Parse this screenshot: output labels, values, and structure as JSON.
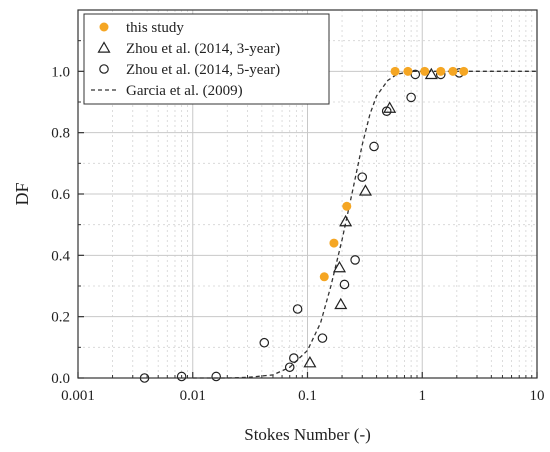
{
  "chart_data": {
    "type": "scatter",
    "xlabel": "Stokes Number (-)",
    "ylabel": "DF",
    "xscale": "log",
    "xlim": [
      0.001,
      10
    ],
    "ylim": [
      0,
      1.2
    ],
    "xticks": [
      0.001,
      0.01,
      0.1,
      1,
      10
    ],
    "xtick_labels": [
      "0.001",
      "0.01",
      "0.1",
      "1",
      "10"
    ],
    "yticks": [
      0.0,
      0.2,
      0.4,
      0.6,
      0.8,
      1.0
    ],
    "ytick_labels": [
      "0.0",
      "0.2",
      "0.4",
      "0.6",
      "0.8",
      "1.0"
    ],
    "grid": true,
    "legend_position": "top-left",
    "series": [
      {
        "name": "this study",
        "marker": "filled-circle",
        "color": "#f5a623",
        "points": [
          [
            0.14,
            0.33
          ],
          [
            0.17,
            0.44
          ],
          [
            0.22,
            0.56
          ],
          [
            0.58,
            1.0
          ],
          [
            0.75,
            1.0
          ],
          [
            1.05,
            1.0
          ],
          [
            1.45,
            1.0
          ],
          [
            1.85,
            1.0
          ],
          [
            2.3,
            1.0
          ]
        ]
      },
      {
        "name": "Zhou et al. (2014, 3-year)",
        "marker": "open-triangle",
        "color": "#222222",
        "points": [
          [
            0.105,
            0.05
          ],
          [
            0.195,
            0.24
          ],
          [
            0.19,
            0.36
          ],
          [
            0.215,
            0.51
          ],
          [
            0.32,
            0.61
          ],
          [
            0.52,
            0.88
          ],
          [
            1.2,
            0.99
          ]
        ]
      },
      {
        "name": "Zhou et al. (2014, 5-year)",
        "marker": "open-circle",
        "color": "#222222",
        "points": [
          [
            0.0038,
            0.0
          ],
          [
            0.008,
            0.005
          ],
          [
            0.016,
            0.005
          ],
          [
            0.042,
            0.115
          ],
          [
            0.07,
            0.035
          ],
          [
            0.076,
            0.065
          ],
          [
            0.082,
            0.225
          ],
          [
            0.135,
            0.13
          ],
          [
            0.21,
            0.305
          ],
          [
            0.26,
            0.385
          ],
          [
            0.3,
            0.655
          ],
          [
            0.38,
            0.755
          ],
          [
            0.49,
            0.87
          ],
          [
            0.8,
            0.915
          ],
          [
            0.87,
            0.99
          ],
          [
            1.45,
            0.99
          ],
          [
            2.1,
            0.995
          ]
        ]
      },
      {
        "name": "Garcia et al. (2009)",
        "marker": "dashed-line",
        "color": "#333333",
        "points": [
          [
            0.01,
            0.0
          ],
          [
            0.02,
            0.0
          ],
          [
            0.03,
            0.002
          ],
          [
            0.05,
            0.01
          ],
          [
            0.07,
            0.035
          ],
          [
            0.1,
            0.09
          ],
          [
            0.13,
            0.18
          ],
          [
            0.16,
            0.3
          ],
          [
            0.2,
            0.45
          ],
          [
            0.25,
            0.62
          ],
          [
            0.3,
            0.76
          ],
          [
            0.35,
            0.86
          ],
          [
            0.4,
            0.92
          ],
          [
            0.5,
            0.97
          ],
          [
            0.6,
            0.99
          ],
          [
            0.8,
            1.0
          ],
          [
            1,
            1.0
          ],
          [
            10,
            1.0
          ]
        ]
      }
    ]
  }
}
